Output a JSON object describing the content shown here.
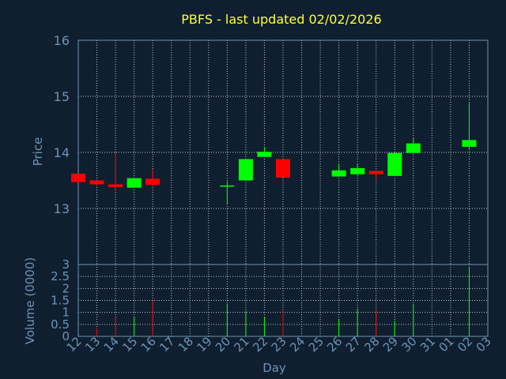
{
  "chart_data": {
    "type": "candlestick",
    "title": "PBFS - last updated 02/02/2026",
    "xlabel": "Day",
    "price_ylabel": "Price",
    "volume_ylabel": "Volume (0000)",
    "price_ylim": [
      12.0,
      16.0
    ],
    "price_yticks": [
      "13",
      "14",
      "15",
      "16"
    ],
    "volume_ylim": [
      0,
      3
    ],
    "volume_yticks": [
      "0",
      "0.5",
      "1",
      "1.5",
      "2",
      "2.5",
      "3"
    ],
    "grid": true,
    "colors": {
      "up": "#00ff00",
      "down": "#ff0000",
      "title": "#ffff33",
      "axis": "#6f93b5",
      "grid": "#c0c8d0",
      "background": "#0f1f2f"
    },
    "xticks": [
      "12",
      "13",
      "14",
      "15",
      "16",
      "17",
      "18",
      "19",
      "20",
      "21",
      "22",
      "23",
      "24",
      "25",
      "26",
      "27",
      "28",
      "29",
      "30",
      "31",
      "01",
      "02",
      "03"
    ],
    "candles": [
      {
        "day": "12",
        "open": 13.62,
        "high": 13.62,
        "low": 13.47,
        "close": 13.47,
        "volume": 0.0
      },
      {
        "day": "13",
        "open": 13.5,
        "high": 13.5,
        "low": 13.4,
        "close": 13.43,
        "volume": 0.35
      },
      {
        "day": "14",
        "open": 13.43,
        "high": 14.0,
        "low": 13.33,
        "close": 13.38,
        "volume": 0.8
      },
      {
        "day": "15",
        "open": 13.37,
        "high": 13.55,
        "low": 13.37,
        "close": 13.54,
        "volume": 0.8
      },
      {
        "day": "16",
        "open": 13.53,
        "high": 13.7,
        "low": 13.4,
        "close": 13.42,
        "volume": 1.5
      },
      {
        "day": "20",
        "open": 13.4,
        "high": 13.48,
        "low": 13.08,
        "close": 13.41,
        "volume": 1.35
      },
      {
        "day": "21",
        "open": 13.5,
        "high": 13.88,
        "low": 13.5,
        "close": 13.88,
        "volume": 1.05
      },
      {
        "day": "22",
        "open": 13.92,
        "high": 14.1,
        "low": 13.92,
        "close": 14.01,
        "volume": 0.8
      },
      {
        "day": "23",
        "open": 13.88,
        "high": 13.88,
        "low": 13.55,
        "close": 13.55,
        "volume": 1.05
      },
      {
        "day": "26",
        "open": 13.57,
        "high": 13.8,
        "low": 13.57,
        "close": 13.68,
        "volume": 0.7
      },
      {
        "day": "27",
        "open": 13.61,
        "high": 13.8,
        "low": 13.6,
        "close": 13.72,
        "volume": 1.15
      },
      {
        "day": "28",
        "open": 13.67,
        "high": 13.67,
        "low": 13.52,
        "close": 13.61,
        "volume": 1.15
      },
      {
        "day": "29",
        "open": 13.58,
        "high": 14.0,
        "low": 13.58,
        "close": 13.99,
        "volume": 0.65
      },
      {
        "day": "30",
        "open": 13.99,
        "high": 14.25,
        "low": 13.99,
        "close": 14.16,
        "volume": 1.35
      },
      {
        "day": "02",
        "open": 14.1,
        "high": 14.88,
        "low": 14.05,
        "close": 14.22,
        "volume": 2.9
      }
    ]
  }
}
